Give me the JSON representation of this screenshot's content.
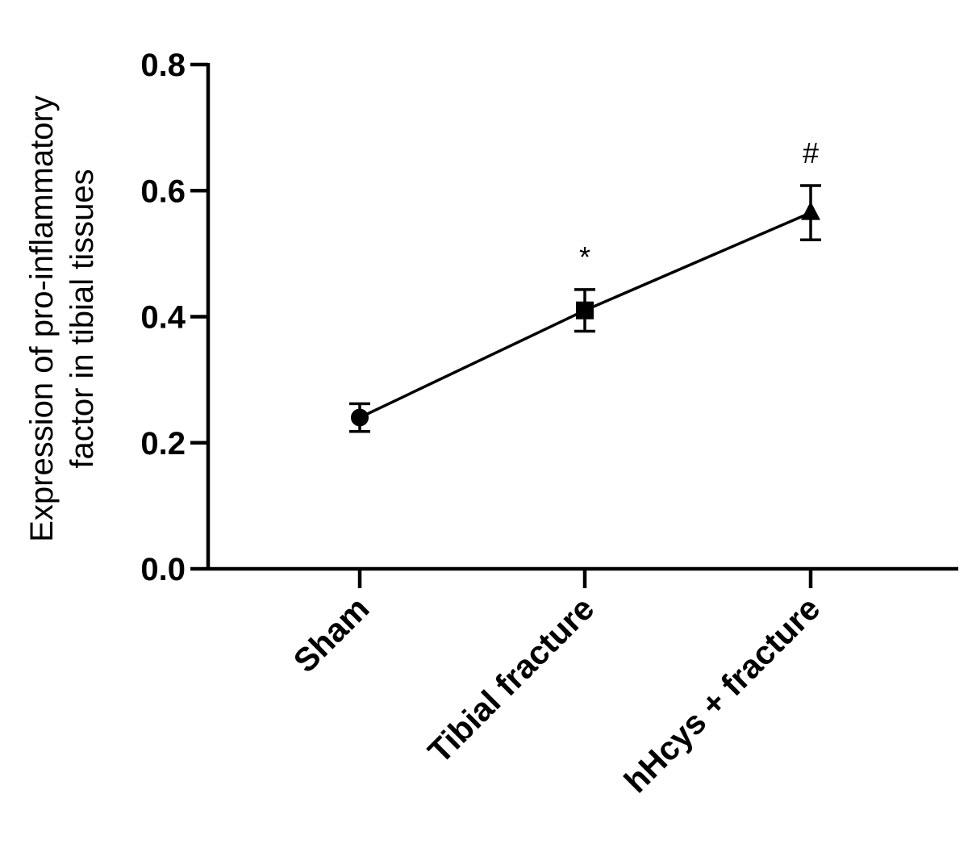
{
  "chart_data": {
    "type": "line",
    "categories": [
      "Sham",
      "Tibial fracture",
      "hHcys + fracture"
    ],
    "series": [
      {
        "values": [
          0.24,
          0.41,
          0.565
        ],
        "errors": [
          0.022,
          0.033,
          0.043
        ],
        "markers": [
          "circle",
          "square",
          "triangle"
        ]
      }
    ],
    "annotations": [
      "",
      "*",
      "#"
    ],
    "ylabel_lines": [
      "Expression of pro-inflammatory",
      "factor in tibial tissues"
    ],
    "xlabel": "",
    "yticks": [
      0.0,
      0.2,
      0.4,
      0.6,
      0.8
    ],
    "ytick_labels": [
      "0.0",
      "0.2",
      "0.4",
      "0.6",
      "0.8"
    ],
    "ylim": [
      0,
      0.8
    ],
    "grid": false,
    "legend": "none"
  }
}
